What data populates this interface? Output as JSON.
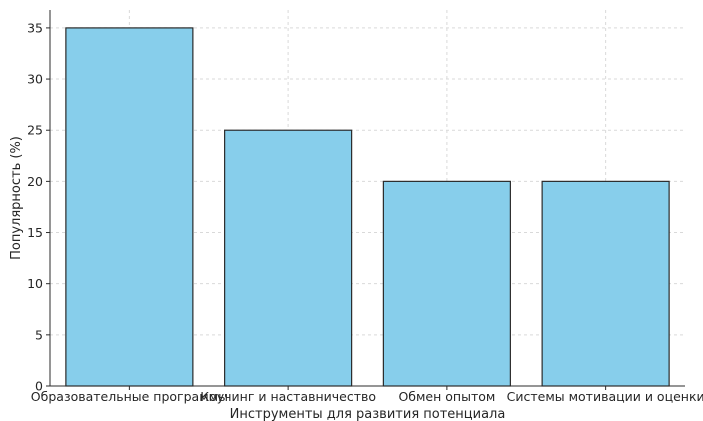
{
  "chart_data": {
    "type": "bar",
    "title": "",
    "xlabel": "Инструменты для развития потенциала",
    "ylabel": "Популярность (%)",
    "categories": [
      "Образовательные программы",
      "Коучинг и наставничество",
      "Обмен опытом",
      "Системы мотивации и оценки"
    ],
    "values": [
      35,
      25,
      20,
      20
    ],
    "ylim": [
      0,
      36.75
    ],
    "yticks": [
      0,
      5,
      10,
      15,
      20,
      25,
      30,
      35
    ],
    "grid": true,
    "bar_color": "#87ceeb",
    "edge_color": "#2b2b2b"
  }
}
